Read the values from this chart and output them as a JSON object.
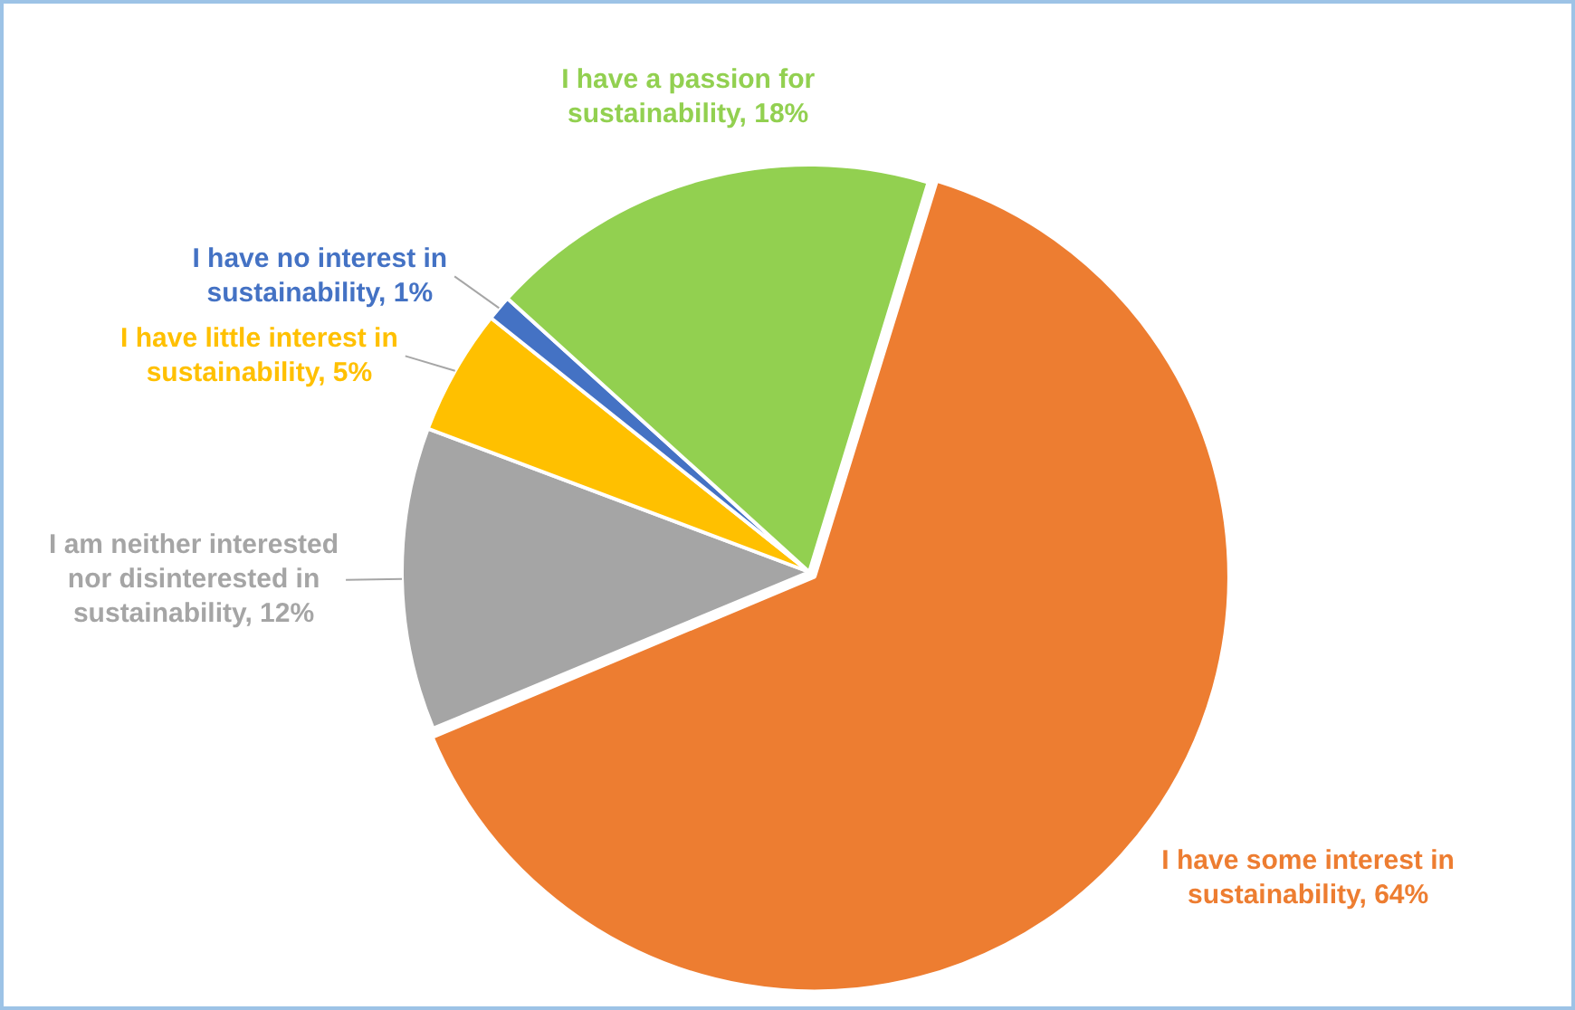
{
  "chart_data": {
    "type": "pie",
    "categories": [
      "I have some interest in sustainability",
      "I am neither interested nor disinterested in sustainability",
      "I have little interest in sustainability",
      "I have no interest in sustainability",
      "I have a passion for sustainability"
    ],
    "values": [
      64,
      12,
      5,
      1,
      18
    ],
    "value_labels": [
      "64%",
      "12%",
      "5%",
      "1%",
      "18%"
    ],
    "colors": [
      "#ed7d31",
      "#a5a5a5",
      "#ffc000",
      "#4472c4",
      "#92d050"
    ],
    "legend": false
  }
}
